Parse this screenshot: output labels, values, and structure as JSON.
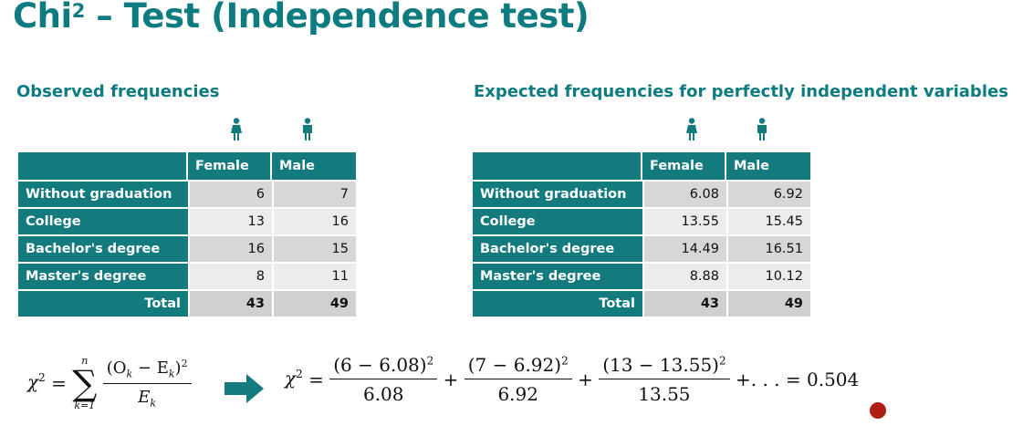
{
  "title": {
    "main": "Chi",
    "sup": "2",
    "rest": " – Test (Independence test)"
  },
  "observed": {
    "heading": "Observed frequencies",
    "columns": [
      "Female",
      "Male"
    ],
    "rows": [
      {
        "label": "Without graduation",
        "values": [
          "6",
          "7"
        ]
      },
      {
        "label": "College",
        "values": [
          "13",
          "16"
        ]
      },
      {
        "label": "Bachelor's degree",
        "values": [
          "16",
          "15"
        ]
      },
      {
        "label": "Master's degree",
        "values": [
          "8",
          "11"
        ]
      }
    ],
    "total": {
      "label": "Total",
      "values": [
        "43",
        "49"
      ]
    }
  },
  "expected": {
    "heading": "Expected frequencies for perfectly independent variables",
    "columns": [
      "Female",
      "Male"
    ],
    "rows": [
      {
        "label": "Without graduation",
        "values": [
          "6.08",
          "6.92"
        ]
      },
      {
        "label": "College",
        "values": [
          "13.55",
          "15.45"
        ]
      },
      {
        "label": "Bachelor's degree",
        "values": [
          "14.49",
          "16.51"
        ]
      },
      {
        "label": "Master's degree",
        "values": [
          "8.88",
          "10.12"
        ]
      }
    ],
    "total": {
      "label": "Total",
      "values": [
        "43",
        "49"
      ]
    }
  },
  "formula": {
    "general": {
      "lhs": "χ",
      "lhs_exp": "2",
      "sum_upper": "n",
      "sum_lower": "k=1",
      "numerator": "(O",
      "num_sub1": "k",
      "num_mid": " − E",
      "num_sub2": "k",
      "num_end": ")",
      "num_exp": "2",
      "denominator": "E",
      "den_sub": "k"
    },
    "applied": {
      "lhs": "χ",
      "lhs_exp": "2",
      "terms": [
        {
          "num": "(6 − 6.08)",
          "exp": "2",
          "den": "6.08"
        },
        {
          "num": "(7 − 6.92)",
          "exp": "2",
          "den": "6.92"
        },
        {
          "num": "(13 − 13.55)",
          "exp": "2",
          "den": "13.55"
        }
      ],
      "tail": "+. . . = 0.504"
    }
  },
  "colors": {
    "accent": "#0d7b7f",
    "table_header": "#137a7e",
    "cell_dark": "#d7d7d7",
    "cell_light": "#ececec",
    "cursor_dot": "#b01d14"
  },
  "icons": {
    "female": "female-person-icon",
    "male": "male-person-icon",
    "arrow": "right-arrow-icon"
  }
}
